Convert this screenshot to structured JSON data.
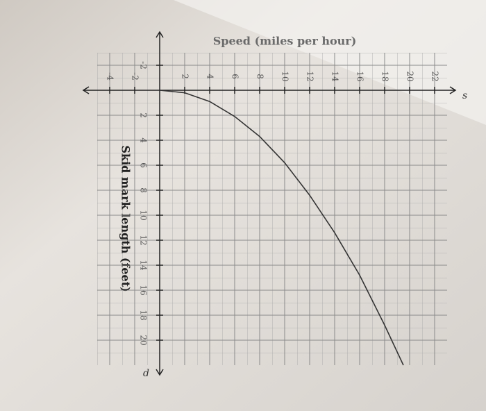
{
  "chart_data": {
    "type": "line",
    "title": "Speed (miles per hour)",
    "y_label": "Skid mark length (feet)",
    "x_axis_letter": "s",
    "y_axis_letter": "d",
    "x": [
      0,
      2,
      4,
      6,
      8,
      10,
      12,
      14,
      16,
      18,
      19.5
    ],
    "series": [
      {
        "color": "#333333",
        "values": [
          0,
          0.2,
          0.9,
          2.1,
          3.7,
          5.8,
          8.4,
          11.4,
          14.8,
          18.8,
          22
        ]
      }
    ],
    "xlim": [
      -5,
      23
    ],
    "ylim": [
      -3,
      22
    ],
    "xticks": [
      -4,
      -2,
      2,
      4,
      6,
      8,
      10,
      12,
      14,
      16,
      18,
      20,
      22
    ],
    "yticks": [
      -2,
      2,
      4,
      6,
      8,
      10,
      12,
      14,
      16,
      18,
      20
    ],
    "grid": true
  }
}
